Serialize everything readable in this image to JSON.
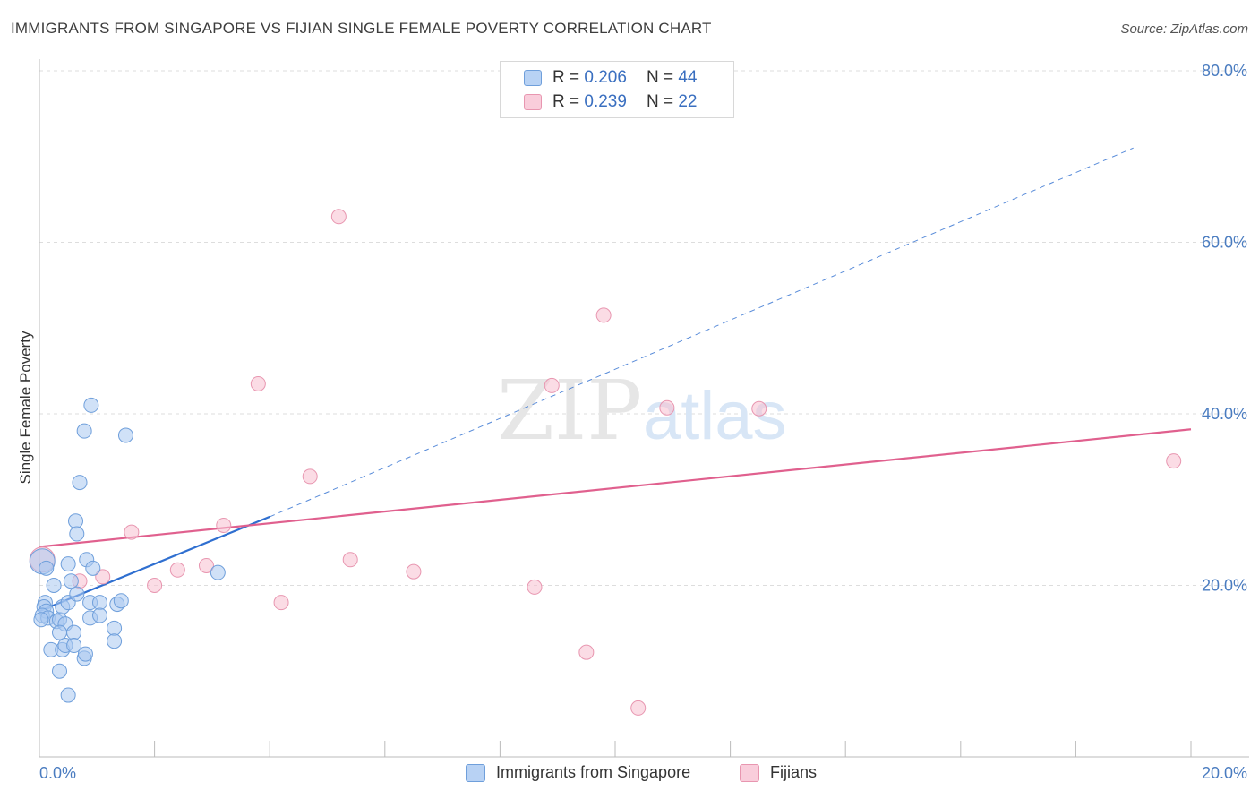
{
  "title": "IMMIGRANTS FROM SINGAPORE VS FIJIAN SINGLE FEMALE POVERTY CORRELATION CHART",
  "source": "Source: ZipAtlas.com",
  "watermark": {
    "zip": "ZIP",
    "atlas": "atlas"
  },
  "colors": {
    "blue_fill": "#aac8f0",
    "blue_stroke": "#6f9fdb",
    "blue_line": "#2f6fd0",
    "pink_fill": "#f7bfd0",
    "pink_stroke": "#e896b0",
    "pink_line": "#e0608e",
    "grid": "#dddddd",
    "tick_text": "#4a7cc0"
  },
  "legend": {
    "rows": [
      {
        "r_label": "R =",
        "r_value": "0.206",
        "n_label": "N =",
        "n_value": "44"
      },
      {
        "r_label": "R =",
        "r_value": "0.239",
        "n_label": "N =",
        "n_value": "22"
      }
    ]
  },
  "bottom_legend": {
    "series1": "Immigrants from Singapore",
    "series2": "Fijians"
  },
  "chart_data": {
    "type": "scatter",
    "title": "IMMIGRANTS FROM SINGAPORE VS FIJIAN SINGLE FEMALE POVERTY CORRELATION CHART",
    "xlabel": "",
    "ylabel": "Single Female Poverty",
    "xlim": [
      0,
      20
    ],
    "ylim": [
      0,
      80
    ],
    "x_tick_labels": [
      "0.0%",
      "20.0%"
    ],
    "y_tick_labels": [
      "20.0%",
      "40.0%",
      "60.0%",
      "80.0%"
    ],
    "y_ticks": [
      20,
      40,
      60,
      80
    ],
    "series": [
      {
        "name": "Immigrants from Singapore",
        "R": 0.206,
        "N": 44,
        "trend": {
          "x0": 0,
          "y0": 17.0,
          "x1": 4.0,
          "y1": 28.0,
          "dash_to_x": 19.0,
          "dash_to_y": 71.0
        },
        "points": [
          [
            0.05,
            22.8
          ],
          [
            0.12,
            22.0
          ],
          [
            0.1,
            18.0
          ],
          [
            0.08,
            17.5
          ],
          [
            0.12,
            17.0
          ],
          [
            0.05,
            16.5
          ],
          [
            0.15,
            16.2
          ],
          [
            0.25,
            20.0
          ],
          [
            0.3,
            15.8
          ],
          [
            0.35,
            16.0
          ],
          [
            0.4,
            17.5
          ],
          [
            0.45,
            15.5
          ],
          [
            0.2,
            12.5
          ],
          [
            0.35,
            14.5
          ],
          [
            0.4,
            12.5
          ],
          [
            0.45,
            13.0
          ],
          [
            0.5,
            22.5
          ],
          [
            0.5,
            18.0
          ],
          [
            0.35,
            10.0
          ],
          [
            0.5,
            7.2
          ],
          [
            0.55,
            20.5
          ],
          [
            0.6,
            14.5
          ],
          [
            0.6,
            13.0
          ],
          [
            0.65,
            19.0
          ],
          [
            0.63,
            27.5
          ],
          [
            0.65,
            26.0
          ],
          [
            0.7,
            32.0
          ],
          [
            0.78,
            11.5
          ],
          [
            0.8,
            12.0
          ],
          [
            0.78,
            38.0
          ],
          [
            0.82,
            23.0
          ],
          [
            0.88,
            16.2
          ],
          [
            0.88,
            18.0
          ],
          [
            0.9,
            41.0
          ],
          [
            0.93,
            22.0
          ],
          [
            1.05,
            18.0
          ],
          [
            1.05,
            16.5
          ],
          [
            1.3,
            15.0
          ],
          [
            1.3,
            13.5
          ],
          [
            1.35,
            17.8
          ],
          [
            1.42,
            18.2
          ],
          [
            1.5,
            37.5
          ],
          [
            3.1,
            21.5
          ],
          [
            0.03,
            16.0
          ]
        ]
      },
      {
        "name": "Fijians",
        "R": 0.239,
        "N": 22,
        "trend": {
          "x0": 0,
          "y0": 24.5,
          "x1": 20.0,
          "y1": 38.2
        },
        "points": [
          [
            0.05,
            23.0
          ],
          [
            0.7,
            20.5
          ],
          [
            1.1,
            21.0
          ],
          [
            1.6,
            26.2
          ],
          [
            2.0,
            20.0
          ],
          [
            2.4,
            21.8
          ],
          [
            2.9,
            22.3
          ],
          [
            3.2,
            27.0
          ],
          [
            3.8,
            43.5
          ],
          [
            4.2,
            18.0
          ],
          [
            4.7,
            32.7
          ],
          [
            5.2,
            63.0
          ],
          [
            5.4,
            23.0
          ],
          [
            6.5,
            21.6
          ],
          [
            8.6,
            19.8
          ],
          [
            8.9,
            43.3
          ],
          [
            9.5,
            12.2
          ],
          [
            9.8,
            51.5
          ],
          [
            10.4,
            5.7
          ],
          [
            10.9,
            40.7
          ],
          [
            12.5,
            40.6
          ],
          [
            19.7,
            34.5
          ]
        ]
      }
    ]
  }
}
